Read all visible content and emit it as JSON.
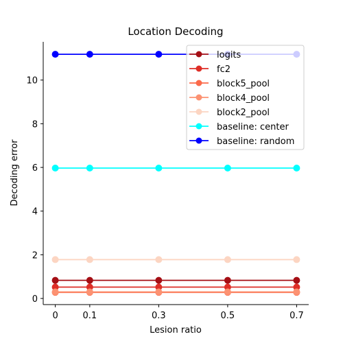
{
  "chart_data": {
    "type": "line",
    "title": "Location Decoding",
    "xlabel": "Lesion ratio",
    "ylabel": "Decoding error",
    "x": [
      0,
      0.1,
      0.3,
      0.5,
      0.7
    ],
    "xticks": [
      "0",
      "0.1",
      "0.3",
      "0.5",
      "0.7"
    ],
    "yticks": [
      "0",
      "2",
      "4",
      "6",
      "8",
      "10"
    ],
    "xlim": [
      -0.035,
      0.735
    ],
    "ylim": [
      -0.28,
      11.75
    ],
    "grid": false,
    "legend_position": "top-right",
    "series": [
      {
        "name": "logits",
        "color": "#a50f15",
        "values": [
          0.83,
          0.83,
          0.83,
          0.83,
          0.83
        ]
      },
      {
        "name": "fc2",
        "color": "#de2d26",
        "values": [
          0.52,
          0.52,
          0.52,
          0.52,
          0.52
        ]
      },
      {
        "name": "block5_pool",
        "color": "#fb6a4a",
        "values": [
          0.28,
          0.28,
          0.28,
          0.28,
          0.28
        ]
      },
      {
        "name": "block4_pool",
        "color": "#fc9272",
        "values": [
          0.3,
          0.3,
          0.3,
          0.3,
          0.3
        ]
      },
      {
        "name": "block2_pool",
        "color": "#fcd5c2",
        "values": [
          1.78,
          1.78,
          1.78,
          1.78,
          1.78
        ]
      },
      {
        "name": "baseline: center",
        "color": "#00ffff",
        "values": [
          5.97,
          5.97,
          5.97,
          5.97,
          5.97
        ]
      },
      {
        "name": "baseline: random",
        "color": "#0000ff",
        "values": [
          11.18,
          11.18,
          11.18,
          11.18,
          11.18
        ]
      }
    ]
  }
}
